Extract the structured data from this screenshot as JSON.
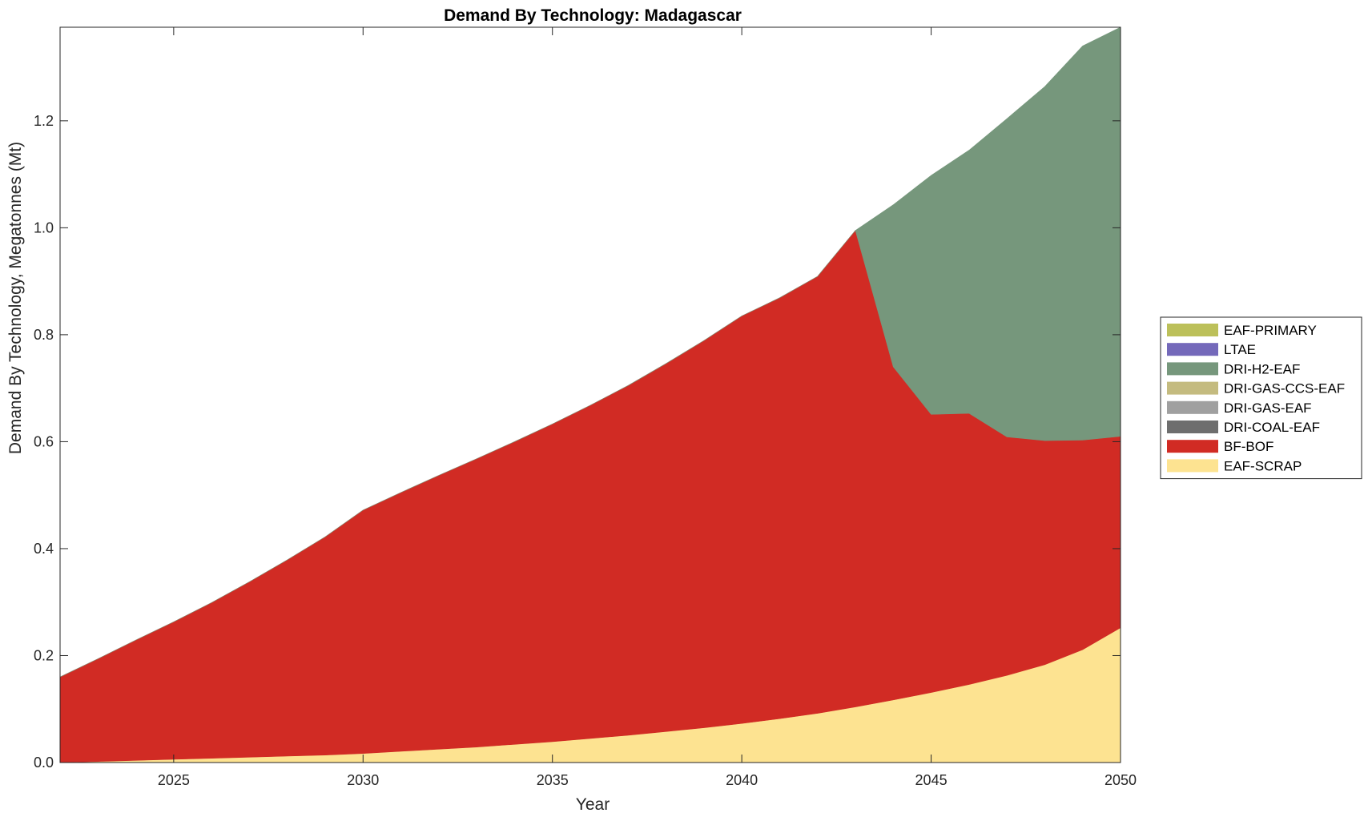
{
  "chart_data": {
    "type": "area",
    "stacked": true,
    "title": "Demand By Technology: Madagascar",
    "xlabel": "Year",
    "ylabel": "Demand By Technology, Megatonnes (Mt)",
    "xlim": [
      2022,
      2050
    ],
    "ylim": [
      0,
      1.375
    ],
    "xticks": [
      2025,
      2030,
      2035,
      2040,
      2045,
      2050
    ],
    "yticks": [
      0.0,
      0.2,
      0.4,
      0.6,
      0.8,
      1.0,
      1.2
    ],
    "ytick_labels": [
      "0.0",
      "0.2",
      "0.4",
      "0.6",
      "0.8",
      "1.0",
      "1.2"
    ],
    "grid": false,
    "legend_position": "right",
    "x": [
      2022,
      2023,
      2024,
      2025,
      2026,
      2027,
      2028,
      2029,
      2030,
      2031,
      2032,
      2033,
      2034,
      2035,
      2036,
      2037,
      2038,
      2039,
      2040,
      2041,
      2042,
      2043,
      2044,
      2045,
      2046,
      2047,
      2048,
      2049,
      2050
    ],
    "series": [
      {
        "name": "EAF-SCRAP",
        "color": "#fde391",
        "values": [
          0.0,
          0.002,
          0.004,
          0.006,
          0.008,
          0.01,
          0.012,
          0.014,
          0.017,
          0.021,
          0.025,
          0.029,
          0.034,
          0.039,
          0.045,
          0.051,
          0.058,
          0.065,
          0.073,
          0.082,
          0.092,
          0.104,
          0.117,
          0.131,
          0.146,
          0.163,
          0.183,
          0.211,
          0.252
        ]
      },
      {
        "name": "BF-BOF",
        "color": "#d12b24",
        "values": [
          0.16,
          0.192,
          0.225,
          0.257,
          0.291,
          0.328,
          0.367,
          0.408,
          0.455,
          0.484,
          0.512,
          0.539,
          0.566,
          0.594,
          0.623,
          0.654,
          0.688,
          0.724,
          0.762,
          0.787,
          0.817,
          0.891,
          0.623,
          0.52,
          0.507,
          0.446,
          0.419,
          0.392,
          0.358
        ]
      },
      {
        "name": "DRI-COAL-EAF",
        "color": "#6e6e6e",
        "values": [
          0,
          0,
          0,
          0,
          0,
          0,
          0,
          0,
          0,
          0,
          0,
          0,
          0,
          0,
          0,
          0,
          0,
          0,
          0,
          0,
          0,
          0,
          0,
          0,
          0,
          0,
          0,
          0,
          0
        ]
      },
      {
        "name": "DRI-GAS-EAF",
        "color": "#a0a0a0",
        "values": [
          0,
          0,
          0,
          0,
          0,
          0,
          0,
          0,
          0,
          0,
          0,
          0,
          0,
          0,
          0,
          0,
          0,
          0,
          0,
          0,
          0,
          0,
          0,
          0,
          0,
          0,
          0,
          0,
          0
        ]
      },
      {
        "name": "DRI-GAS-CCS-EAF",
        "color": "#c4bb7f",
        "values": [
          0,
          0,
          0,
          0,
          0,
          0,
          0,
          0,
          0,
          0,
          0,
          0,
          0,
          0,
          0,
          0,
          0,
          0,
          0,
          0,
          0,
          0,
          0,
          0,
          0,
          0,
          0,
          0,
          0
        ]
      },
      {
        "name": "DRI-H2-EAF",
        "color": "#76977c",
        "values": [
          0,
          0,
          0,
          0,
          0,
          0,
          0,
          0,
          0,
          0,
          0,
          0,
          0,
          0,
          0,
          0,
          0,
          0,
          0,
          0,
          0,
          0,
          0.303,
          0.447,
          0.492,
          0.595,
          0.662,
          0.737,
          0.765
        ]
      },
      {
        "name": "LTAE",
        "color": "#7469ba",
        "values": [
          0,
          0,
          0,
          0,
          0,
          0,
          0,
          0,
          0,
          0,
          0,
          0,
          0,
          0,
          0,
          0,
          0,
          0,
          0,
          0,
          0,
          0,
          0,
          0,
          0,
          0,
          0,
          0,
          0
        ]
      },
      {
        "name": "EAF-PRIMARY",
        "color": "#bcc05a",
        "values": [
          0,
          0,
          0,
          0,
          0,
          0,
          0,
          0,
          0,
          0,
          0,
          0,
          0,
          0,
          0,
          0,
          0,
          0,
          0,
          0,
          0,
          0,
          0,
          0,
          0,
          0,
          0,
          0,
          0
        ]
      }
    ],
    "legend_order": [
      "EAF-PRIMARY",
      "LTAE",
      "DRI-H2-EAF",
      "DRI-GAS-CCS-EAF",
      "DRI-GAS-EAF",
      "DRI-COAL-EAF",
      "BF-BOF",
      "EAF-SCRAP"
    ]
  }
}
